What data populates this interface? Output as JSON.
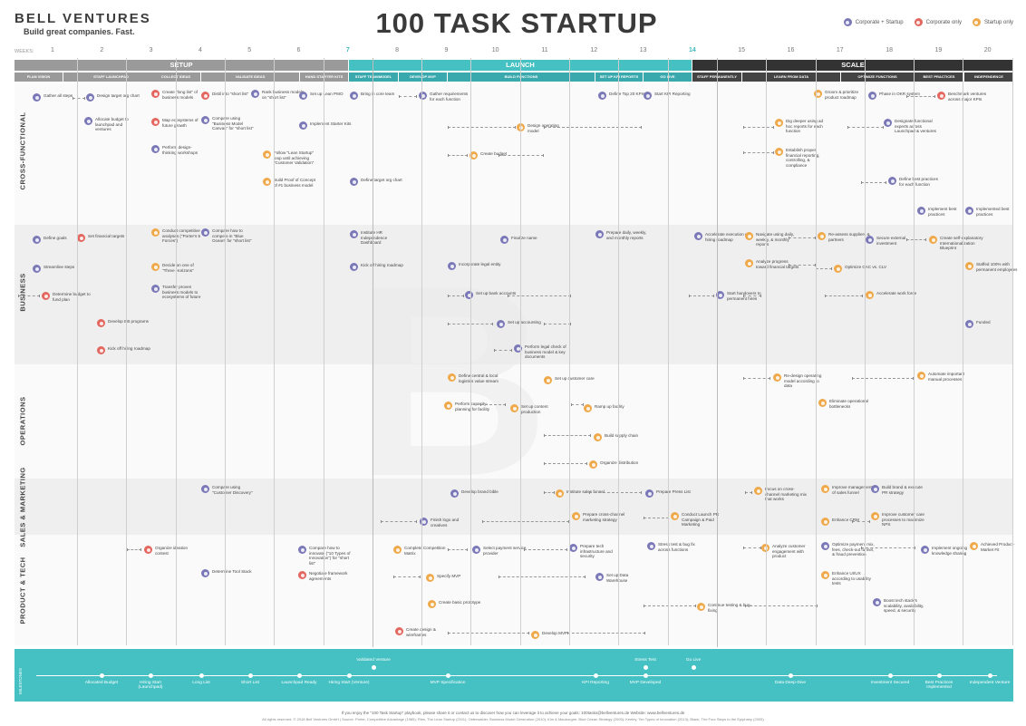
{
  "header": {
    "logo": "BELL VENTURES",
    "tagline": "Build great companies. Fast.",
    "title": "100 TASK STARTUP",
    "legend": [
      "Corporate + Startup",
      "Corporate only",
      "Startup only"
    ]
  },
  "weeks_label": "WEEKS:",
  "weeks": [
    "1",
    "2",
    "3",
    "4",
    "5",
    "6",
    "7",
    "8",
    "9",
    "10",
    "11",
    "12",
    "13",
    "14",
    "15",
    "16",
    "17",
    "18",
    "19",
    "20"
  ],
  "phases": [
    {
      "label": "SETUP",
      "color": "#9a9a9a"
    },
    {
      "label": "LAUNCH",
      "color": "#45c1c3"
    },
    {
      "label": "SCALE",
      "color": "#333333"
    }
  ],
  "subheaders": [
    "PLAN VISION",
    "STAFF LAUNCHPAD",
    "COLLECT IDEAS",
    "VALIDATE IDEAS",
    "HAND STARTER KITS",
    "STAFF TEAM/MODEL",
    "DEVELOP MVP",
    "BUILD FUNCTIONS",
    "SET UP KPI REPORTS",
    "GO LIVE",
    "STAFF PERMANENTLY",
    "LEARN FROM DATA",
    "OPTIMIZE FUNCTIONS",
    "BEST PRACTICES",
    "INDEPENDENCE"
  ],
  "lanes": [
    "CROSS-FUNCTIONAL",
    "BUSINESS",
    "OPERATIONS",
    "SALES & MARKETING",
    "PRODUCT & TECH"
  ],
  "tasks": [
    {
      "t": "Gather all steps",
      "k": "c"
    },
    {
      "t": "Design target org chart",
      "k": "c"
    },
    {
      "t": "Allocate budget to launchpad and ventures",
      "k": "c"
    },
    {
      "t": "Create \"long list\" of business models",
      "k": "o"
    },
    {
      "t": "Map ecosystems of future growth",
      "k": "o"
    },
    {
      "t": "Perform design-thinking workshops",
      "k": "c"
    },
    {
      "t": "Distil into \"short list\"",
      "k": "o"
    },
    {
      "t": "Compare using \"Business Model Canvas\" for \"short list\"",
      "k": "c"
    },
    {
      "t": "Rank business models on \"short list\"",
      "k": "c"
    },
    {
      "t": "Set up Lean PMO",
      "k": "c"
    },
    {
      "t": "Implement Starter Kits",
      "k": "c"
    },
    {
      "t": "Follow \"Lean Startup\" loop until achieving \"Customer Validation\"",
      "k": "s"
    },
    {
      "t": "Build Proof of Concept of #1 business model",
      "k": "s"
    },
    {
      "t": "Bring in core team",
      "k": "c"
    },
    {
      "t": "Define target org chart",
      "k": "c"
    },
    {
      "t": "Gather requirements for each function",
      "k": "c"
    },
    {
      "t": "Define Top 20 KPIs",
      "k": "c"
    },
    {
      "t": "Start KPI Reporting",
      "k": "c"
    },
    {
      "t": "Design operating model",
      "k": "s"
    },
    {
      "t": "Create budget",
      "k": "s"
    },
    {
      "t": "Groom & prioritize product roadmap",
      "k": "s"
    },
    {
      "t": "Phase in OKR system",
      "k": "c"
    },
    {
      "t": "Benchmark ventures across major KPIs",
      "k": "o"
    },
    {
      "t": "Dig deeper using ad hoc reports for each function",
      "k": "s"
    },
    {
      "t": "Designate functional experts across Launchpad & ventures",
      "k": "c"
    },
    {
      "t": "Establish proper financial reporting, controlling, & compliance",
      "k": "s"
    },
    {
      "t": "Define best practices for each function",
      "k": "c"
    },
    {
      "t": "Implement best practices",
      "k": "c"
    },
    {
      "t": "Implemented best practices",
      "k": "c"
    },
    {
      "t": "Define goals",
      "k": "c"
    },
    {
      "t": "Set financial targets",
      "k": "o"
    },
    {
      "t": "Streamline steps",
      "k": "c"
    },
    {
      "t": "Determine budget to fund plan",
      "k": "o"
    },
    {
      "t": "Develop BB programs",
      "k": "o"
    },
    {
      "t": "Kick off hiring roadmap",
      "k": "o"
    },
    {
      "t": "Conduct competitive analyses (\"Porter's 5 Forces\")",
      "k": "s"
    },
    {
      "t": "Decide on one of \"Three Horizons\"",
      "k": "s"
    },
    {
      "t": "Transfer proven business models to ecosystems of future",
      "k": "c"
    },
    {
      "t": "Compare how to compete in \"Blue Ocean\" for \"short list\"",
      "k": "c"
    },
    {
      "t": "Institute HR Independence Dashboard",
      "k": "c"
    },
    {
      "t": "Kick off hiring roadmap",
      "k": "c"
    },
    {
      "t": "Incorporate legal entity",
      "k": "c"
    },
    {
      "t": "Finalize name",
      "k": "c"
    },
    {
      "t": "Set up bank accounts",
      "k": "c"
    },
    {
      "t": "Set up accounting",
      "k": "c"
    },
    {
      "t": "Perform legal check of business model & key documents",
      "k": "c"
    },
    {
      "t": "Prepare daily, weekly, and monthly reports",
      "k": "c"
    },
    {
      "t": "Accelerate execution of hiring roadmap",
      "k": "c"
    },
    {
      "t": "Navigate using daily, weekly, & monthly reports",
      "k": "s"
    },
    {
      "t": "Analyze progress toward financial targets",
      "k": "s"
    },
    {
      "t": "Start handovers to permanent hires",
      "k": "c"
    },
    {
      "t": "Re-assess suppliers & partners",
      "k": "s"
    },
    {
      "t": "Optimize CAC vs. CLV",
      "k": "s"
    },
    {
      "t": "Accelerate work force",
      "k": "s"
    },
    {
      "t": "Secure external investment",
      "k": "c"
    },
    {
      "t": "Create self-explanatory Internationalization Blueprint",
      "k": "s"
    },
    {
      "t": "Staffed 100% with permanent employees",
      "k": "s"
    },
    {
      "t": "Funded",
      "k": "c"
    },
    {
      "t": "Define central & local logistics value stream",
      "k": "s"
    },
    {
      "t": "Set up customer care",
      "k": "s"
    },
    {
      "t": "Perform capacity-planning for facility",
      "k": "s"
    },
    {
      "t": "Set up content production",
      "k": "s"
    },
    {
      "t": "Ramp up facility",
      "k": "s"
    },
    {
      "t": "Build supply chain",
      "k": "s"
    },
    {
      "t": "Organize distribution",
      "k": "s"
    },
    {
      "t": "Re-design operating model according to data",
      "k": "s"
    },
    {
      "t": "Eliminate operational bottlenecks",
      "k": "s"
    },
    {
      "t": "Automate important manual processes",
      "k": "s"
    },
    {
      "t": "Compare using \"Customer Discovery\"",
      "k": "c"
    },
    {
      "t": "Develop brand bible",
      "k": "c"
    },
    {
      "t": "Institute sales funnel",
      "k": "s"
    },
    {
      "t": "Prepare Press List",
      "k": "c"
    },
    {
      "t": "Finish logo and creatives",
      "k": "c"
    },
    {
      "t": "Prepare cross-channel marketing strategy",
      "k": "s"
    },
    {
      "t": "Conduct Launch PR Campaign & Paid Marketing",
      "k": "s"
    },
    {
      "t": "Focus on cross-channel marketing mix that works",
      "k": "s"
    },
    {
      "t": "Improve management of sales funnel",
      "k": "s"
    },
    {
      "t": "Build brand & execute PR strategy",
      "k": "c"
    },
    {
      "t": "Enhance CRM",
      "k": "s"
    },
    {
      "t": "Improve customer care processes to maximize NPS",
      "k": "s"
    },
    {
      "t": "Organize ideation contest",
      "k": "o"
    },
    {
      "t": "Compare how to innovate (\"10 Types of Innovation\") for \"short list\"",
      "k": "c"
    },
    {
      "t": "Determine Tool Stack",
      "k": "c"
    },
    {
      "t": "Negotiate framework agreements",
      "k": "o"
    },
    {
      "t": "Complete Competition Matrix",
      "k": "s"
    },
    {
      "t": "Select payment service provider",
      "k": "c"
    },
    {
      "t": "Prepare tech infrastructure and security",
      "k": "c"
    },
    {
      "t": "Stress test & bug fix across functions",
      "k": "c"
    },
    {
      "t": "Specify MVP",
      "k": "s"
    },
    {
      "t": "Set up Data Warehouse",
      "k": "c"
    },
    {
      "t": "Create basic prototype",
      "k": "s"
    },
    {
      "t": "Create design & wireframes",
      "k": "o"
    },
    {
      "t": "Develop MVP",
      "k": "s"
    },
    {
      "t": "Continue testing & bug-fixing",
      "k": "s"
    },
    {
      "t": "Analyze customer engagement with product",
      "k": "s"
    },
    {
      "t": "Optimize payment mix, fees, check-out funnel, & fraud prevention",
      "k": "c"
    },
    {
      "t": "Implement ongoing knowledge sharing",
      "k": "c"
    },
    {
      "t": "Achieved Product-Market Fit",
      "k": "s"
    },
    {
      "t": "Enhance UI/UX according to usability tests",
      "k": "s"
    },
    {
      "t": "Boost tech stack's scalability, availability, speed, & security",
      "k": "c"
    }
  ],
  "milestones_label": "MILESTONES",
  "milestones": [
    "Allocated Budget",
    "Hiring Start (Launchpad)",
    "Long List",
    "Short List",
    "Launchpad Ready",
    "Hiring Start (Venture)",
    "Validated Venture",
    "MVP Specification",
    "KPI Reporting",
    "Stress Test",
    "MVP Developed",
    "Go Live",
    "Data Deep-Dive",
    "Investment Secured",
    "Best Practices Implemented",
    "Independent Venture"
  ],
  "footer": {
    "line1": "If you enjoy the \"100 Task Startup\" playbook, please share it or contact us to discover how you can leverage it to achieve your goals: 100tasks@bellventures.de   Website: www.bellventures.de",
    "line2": "All rights reserved. © 2018 Bell Ventures GmbH  |  Source: Porter, Competitive Advantage (1985); Ries, The Lean Startup (2011); Osterwalder, Business Model Generation (2010); Kim & Mauborgne, Blue Ocean Strategy (2005); Keeley, Ten Types of Innovation (2013); Blank, The Four Steps to the Epiphany (2005)"
  }
}
